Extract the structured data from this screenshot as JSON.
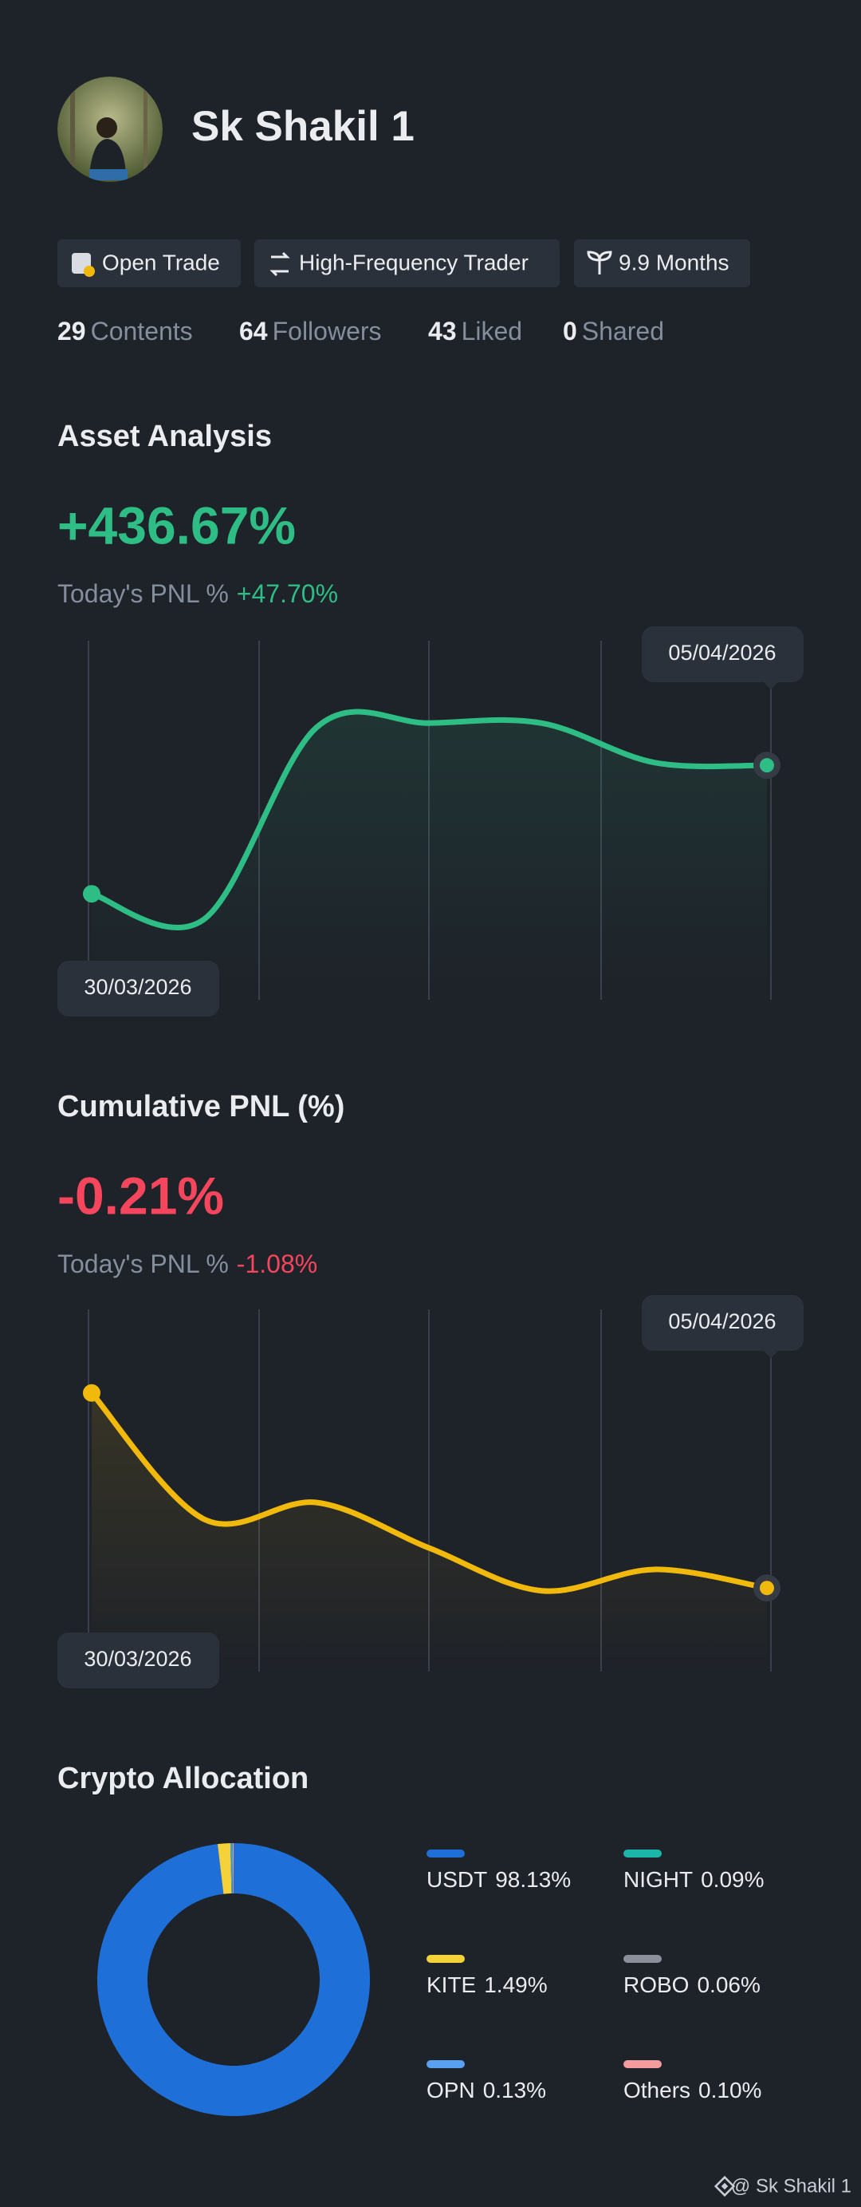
{
  "profile": {
    "name": "Sk Shakil 1",
    "badges": [
      "Open Trade",
      "High-Frequency Trader",
      "9.9 Months"
    ],
    "stats": [
      {
        "value": 29,
        "label": "Contents"
      },
      {
        "value": 64,
        "label": "Followers"
      },
      {
        "value": 43,
        "label": "Liked"
      },
      {
        "value": 0,
        "label": "Shared"
      }
    ]
  },
  "chart_data": [
    {
      "type": "line",
      "title": "Asset Analysis",
      "headline": "+436.67%",
      "pnl_label": "Today's PNL %",
      "pnl_value": "+47.70%",
      "x": [
        "30/03/2026",
        null,
        null,
        null,
        null,
        null,
        "05/04/2026"
      ],
      "values": [
        0,
        -86,
        566,
        580,
        580,
        446,
        436.67
      ],
      "color": "#2ebd85",
      "ylim": [
        -360,
        860
      ]
    },
    {
      "type": "line",
      "title": "Cumulative PNL (%)",
      "headline": "-0.21%",
      "pnl_label": "Today's PNL %",
      "pnl_value": "-1.08%",
      "x": [
        "30/03/2026",
        null,
        null,
        null,
        null,
        null,
        "05/04/2026"
      ],
      "values": [
        0,
        -0.136,
        -0.118,
        -0.167,
        -0.213,
        -0.19,
        -0.21
      ],
      "color": "#f0b90b",
      "ylim": [
        -0.3,
        0.09
      ]
    },
    {
      "type": "pie",
      "title": "Crypto Allocation",
      "donut": true,
      "categories": [
        "USDT",
        "KITE",
        "OPN",
        "NIGHT",
        "ROBO",
        "Others"
      ],
      "values": [
        98.13,
        1.49,
        0.13,
        0.09,
        0.06,
        0.1
      ],
      "value_labels": [
        "98.13%",
        "1.49%",
        "0.13%",
        "0.09%",
        "0.06%",
        "0.10%"
      ],
      "colors": [
        "#1f6fd9",
        "#f5d13a",
        "#5aa0f0",
        "#1bb5aa",
        "#8a8f99",
        "#f49ba0"
      ]
    }
  ],
  "footer": "@ Sk Shakil 1"
}
